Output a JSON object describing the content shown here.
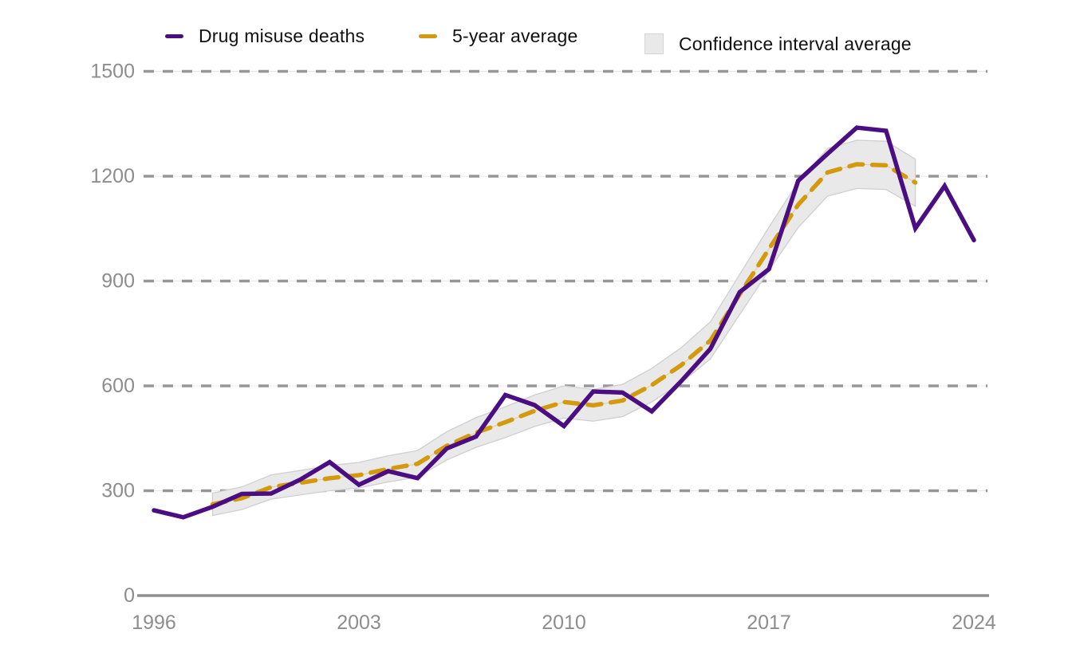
{
  "legend": {
    "items": [
      {
        "label": "Drug misuse deaths",
        "swatch": "purple-line",
        "color": "#4a0e82"
      },
      {
        "label": "5-year average",
        "swatch": "orange-dash",
        "color": "#d49a0e"
      },
      {
        "label": "Confidence interval average",
        "swatch": "gray-box",
        "color": "#e9e9e9"
      }
    ]
  },
  "colors": {
    "deaths_line": "#4a0e82",
    "average_line": "#d49a0e",
    "band_fill": "#e9e9e9",
    "band_edge": "#cfcfcf",
    "band_center_hairline": "#e8cc93",
    "grid_dash": "#979797",
    "grid_underlay": "#e8e8e8",
    "axis_line": "#8f8f8f",
    "tick_label": "#8d8d8d"
  },
  "chart_data": {
    "type": "line",
    "title": "",
    "xlabel": "",
    "ylabel": "",
    "x": [
      1996,
      1997,
      1998,
      1999,
      2000,
      2001,
      2002,
      2003,
      2004,
      2005,
      2006,
      2007,
      2008,
      2009,
      2010,
      2011,
      2012,
      2013,
      2014,
      2015,
      2016,
      2017,
      2018,
      2019,
      2020,
      2021,
      2022,
      2023,
      2024
    ],
    "series": [
      {
        "name": "Drug misuse deaths",
        "style": "solid",
        "color": "#4a0e82",
        "values": [
          244,
          224,
          254,
          291,
          292,
          332,
          382,
          317,
          356,
          336,
          421,
          455,
          574,
          545,
          485,
          584,
          581,
          527,
          613,
          706,
          868,
          934,
          1187,
          1264,
          1339,
          1330,
          1051,
          1172,
          1017
        ]
      },
      {
        "name": "5-year average",
        "style": "dashed",
        "color": "#d49a0e",
        "values": [
          null,
          null,
          261,
          278.6,
          310.2,
          322.8,
          335.8,
          344.6,
          362.4,
          377,
          428.4,
          466.2,
          496,
          528.6,
          553.8,
          544.4,
          558,
          602.2,
          659,
          729.6,
          861.6,
          991.8,
          1118.4,
          1210.8,
          1234.2,
          1231.2,
          1181.8,
          null,
          null
        ]
      },
      {
        "name": "Confidence interval average",
        "style": "band",
        "color": "#e9e9e9",
        "low": [
          null,
          null,
          229,
          246,
          276,
          288,
          300,
          308,
          325,
          339,
          388,
          424,
          452,
          484,
          508,
          499,
          512,
          554,
          609,
          677,
          804,
          930,
          1053,
          1143,
          1165,
          1162,
          1114,
          null,
          null
        ],
        "high": [
          null,
          null,
          293,
          311,
          345,
          358,
          372,
          381,
          400,
          415,
          469,
          509,
          540,
          574,
          600,
          590,
          604,
          650,
          709,
          783,
          919,
          1054,
          1184,
          1279,
          1303,
          1300,
          1249,
          null,
          null
        ]
      }
    ],
    "x_ticks": [
      1996,
      2003,
      2010,
      2017,
      2024
    ],
    "y_ticks": [
      0,
      300,
      600,
      900,
      1200,
      1500
    ],
    "x_range": [
      1996,
      2024
    ],
    "y_range": [
      0,
      1500
    ],
    "grid": "horizontal-dashed",
    "legend_position": "top"
  }
}
